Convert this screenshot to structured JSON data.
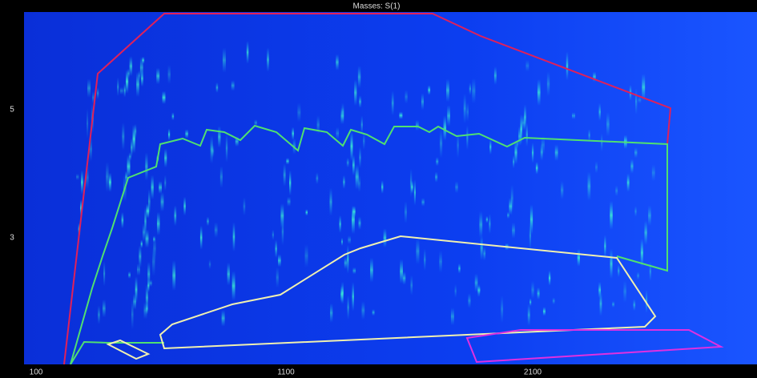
{
  "window": {
    "title": "Masses: S(1)"
  },
  "x_axis": {
    "ticks": [
      "100",
      "1100",
      "2100"
    ]
  },
  "y_axis": {
    "ticks": [
      "5",
      "3"
    ]
  }
}
